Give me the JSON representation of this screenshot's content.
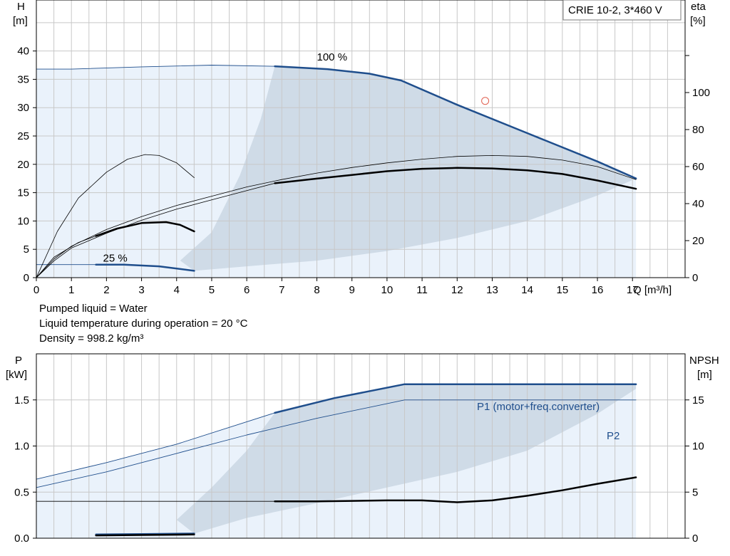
{
  "pump_title": "CRIE 10-2, 3*460 V",
  "info_lines": [
    "Pumped liquid = Water",
    "Liquid temperature during operation = 20 °C",
    "Density = 998.2 kg/m³"
  ],
  "colors": {
    "grid": "#c8c8c8",
    "area_dark": "#cfdbe7",
    "area_light": "#eaf2fb",
    "curve_blue": "#1f4e8c",
    "curve_black": "#000000",
    "marker": "#e06050"
  },
  "chart_data": [
    {
      "type": "line",
      "name": "head-efficiency",
      "xlabel": "Q [m³/h]",
      "ylabel_left": "H\n[m]",
      "ylabel_right": "eta\n[%]",
      "xlim": [
        0,
        18.5
      ],
      "ylim": [
        0,
        49
      ],
      "y2lim": [
        0,
        150
      ],
      "x_ticks": [
        0,
        1,
        2,
        3,
        4,
        5,
        6,
        7,
        8,
        9,
        10,
        11,
        12,
        13,
        14,
        15,
        16,
        17
      ],
      "y_ticks": [
        0,
        5,
        10,
        15,
        20,
        25,
        30,
        35,
        40
      ],
      "y2_ticks": [
        0,
        20,
        40,
        60,
        80,
        100
      ],
      "grid": true,
      "annotations": [
        {
          "text": "100 %",
          "x": 8.0,
          "y": 38.3
        },
        {
          "text": "25 %",
          "x": 1.9,
          "y": 2.8
        }
      ],
      "duty_point": {
        "x": 12.8,
        "y": 31.2
      },
      "series": [
        {
          "style": "thick-blue",
          "points": [
            [
              6.8,
              37.3
            ],
            [
              8.3,
              36.8
            ],
            [
              9.5,
              36.0
            ],
            [
              10.4,
              34.8
            ],
            [
              12.0,
              30.5
            ],
            [
              14.0,
              25.5
            ],
            [
              16.0,
              20.5
            ],
            [
              17.1,
              17.5
            ]
          ]
        },
        {
          "style": "thin-blue",
          "points": [
            [
              0,
              36.8
            ],
            [
              1,
              36.8
            ],
            [
              3,
              37.2
            ],
            [
              5,
              37.5
            ],
            [
              6.8,
              37.3
            ]
          ]
        },
        {
          "style": "thick-blue",
          "points": [
            [
              1.7,
              2.3
            ],
            [
              2.5,
              2.3
            ],
            [
              3.5,
              2.0
            ],
            [
              4.5,
              1.2
            ]
          ]
        },
        {
          "style": "thin-blue",
          "points": [
            [
              0,
              2.3
            ],
            [
              1.7,
              2.3
            ]
          ]
        },
        {
          "style": "thick-black",
          "axis": "right",
          "points": [
            [
              6.8,
              51
            ],
            [
              8,
              53.5
            ],
            [
              9,
              55.5
            ],
            [
              10,
              57.5
            ],
            [
              11,
              58.8
            ],
            [
              12,
              59.3
            ],
            [
              13,
              59
            ],
            [
              14,
              58
            ],
            [
              15,
              56
            ],
            [
              16,
              52.5
            ],
            [
              17.1,
              48
            ]
          ]
        },
        {
          "style": "thin-black",
          "axis": "right",
          "points": [
            [
              0,
              0
            ],
            [
              0.5,
              10
            ],
            [
              1,
              17
            ],
            [
              2,
              26
            ],
            [
              3,
              33
            ],
            [
              4,
              39
            ],
            [
              5,
              44
            ],
            [
              6,
              49
            ],
            [
              7,
              53
            ],
            [
              8,
              56.5
            ],
            [
              9,
              59.5
            ],
            [
              10,
              62
            ],
            [
              11,
              64
            ],
            [
              12,
              65.5
            ],
            [
              13,
              66
            ],
            [
              14,
              65.5
            ],
            [
              15,
              63.5
            ],
            [
              16,
              60
            ],
            [
              17.1,
              53
            ]
          ]
        },
        {
          "style": "thin-black",
          "axis": "right",
          "points": [
            [
              0,
              0
            ],
            [
              0.5,
              9
            ],
            [
              1,
              16
            ],
            [
              2,
              24
            ],
            [
              3,
              31
            ],
            [
              4,
              37
            ],
            [
              5,
              42
            ],
            [
              6,
              47
            ],
            [
              6.8,
              51
            ]
          ]
        },
        {
          "style": "thick-black",
          "axis": "right",
          "points": [
            [
              1.7,
              22.5
            ],
            [
              2.3,
              26.5
            ],
            [
              3,
              29.5
            ],
            [
              3.7,
              30
            ],
            [
              4.1,
              28.5
            ],
            [
              4.5,
              25
            ]
          ]
        },
        {
          "style": "thin-black",
          "axis": "right",
          "points": [
            [
              0,
              0
            ],
            [
              0.6,
              25
            ],
            [
              1.2,
              43
            ],
            [
              2,
              57
            ],
            [
              2.6,
              64
            ],
            [
              3.1,
              66.5
            ],
            [
              3.5,
              66
            ],
            [
              4,
              62
            ],
            [
              4.5,
              54
            ]
          ]
        },
        {
          "style": "thin-black",
          "axis": "right",
          "points": [
            [
              0,
              0
            ],
            [
              0.5,
              11
            ],
            [
              1.2,
              19
            ],
            [
              1.7,
              22.5
            ]
          ]
        }
      ]
    },
    {
      "type": "line",
      "name": "power-npsh",
      "ylabel_left": "P\n[kW]",
      "ylabel_right": "NPSH\n[m]",
      "xlim": [
        0,
        18.5
      ],
      "ylim": [
        0,
        2.0
      ],
      "y2lim": [
        0,
        20
      ],
      "y_ticks": [
        0.0,
        0.5,
        1.0,
        1.5
      ],
      "y2_ticks": [
        0,
        5,
        10,
        15
      ],
      "grid": true,
      "series": [
        {
          "name": "P1 (motor+freq.converter)",
          "style": "thick-blue",
          "points": [
            [
              6.8,
              1.36
            ],
            [
              8.5,
              1.52
            ],
            [
              10.5,
              1.67
            ],
            [
              12,
              1.67
            ],
            [
              14,
              1.67
            ],
            [
              17.1,
              1.67
            ]
          ]
        },
        {
          "style": "thin-blue",
          "points": [
            [
              0,
              0.64
            ],
            [
              2,
              0.82
            ],
            [
              4,
              1.02
            ],
            [
              6.8,
              1.36
            ]
          ]
        },
        {
          "name": "P2",
          "style": "thin-blue",
          "points": [
            [
              0,
              0.55
            ],
            [
              2,
              0.72
            ],
            [
              4,
              0.92
            ],
            [
              6,
              1.12
            ],
            [
              8,
              1.3
            ],
            [
              10.5,
              1.5
            ],
            [
              12,
              1.5
            ],
            [
              14,
              1.5
            ],
            [
              17.1,
              1.5
            ]
          ]
        },
        {
          "style": "thick-blue",
          "points": [
            [
              1.7,
              0.04
            ],
            [
              3,
              0.045
            ],
            [
              4.5,
              0.05
            ]
          ]
        },
        {
          "style": "thick-black",
          "axis": "right",
          "points": [
            [
              6.8,
              4.0
            ],
            [
              8,
              4.0
            ],
            [
              9,
              4.05
            ],
            [
              10,
              4.1
            ],
            [
              11,
              4.1
            ],
            [
              12,
              3.9
            ],
            [
              13,
              4.1
            ],
            [
              14,
              4.6
            ],
            [
              15,
              5.2
            ],
            [
              16,
              5.9
            ],
            [
              17.1,
              6.6
            ]
          ]
        },
        {
          "style": "thin-black",
          "axis": "right",
          "points": [
            [
              0,
              4.0
            ],
            [
              3,
              4.0
            ],
            [
              6.8,
              4.0
            ]
          ]
        },
        {
          "style": "thick-black",
          "points": [
            [
              1.7,
              0.03
            ],
            [
              3,
              0.035
            ],
            [
              4.5,
              0.04
            ]
          ]
        }
      ]
    }
  ]
}
